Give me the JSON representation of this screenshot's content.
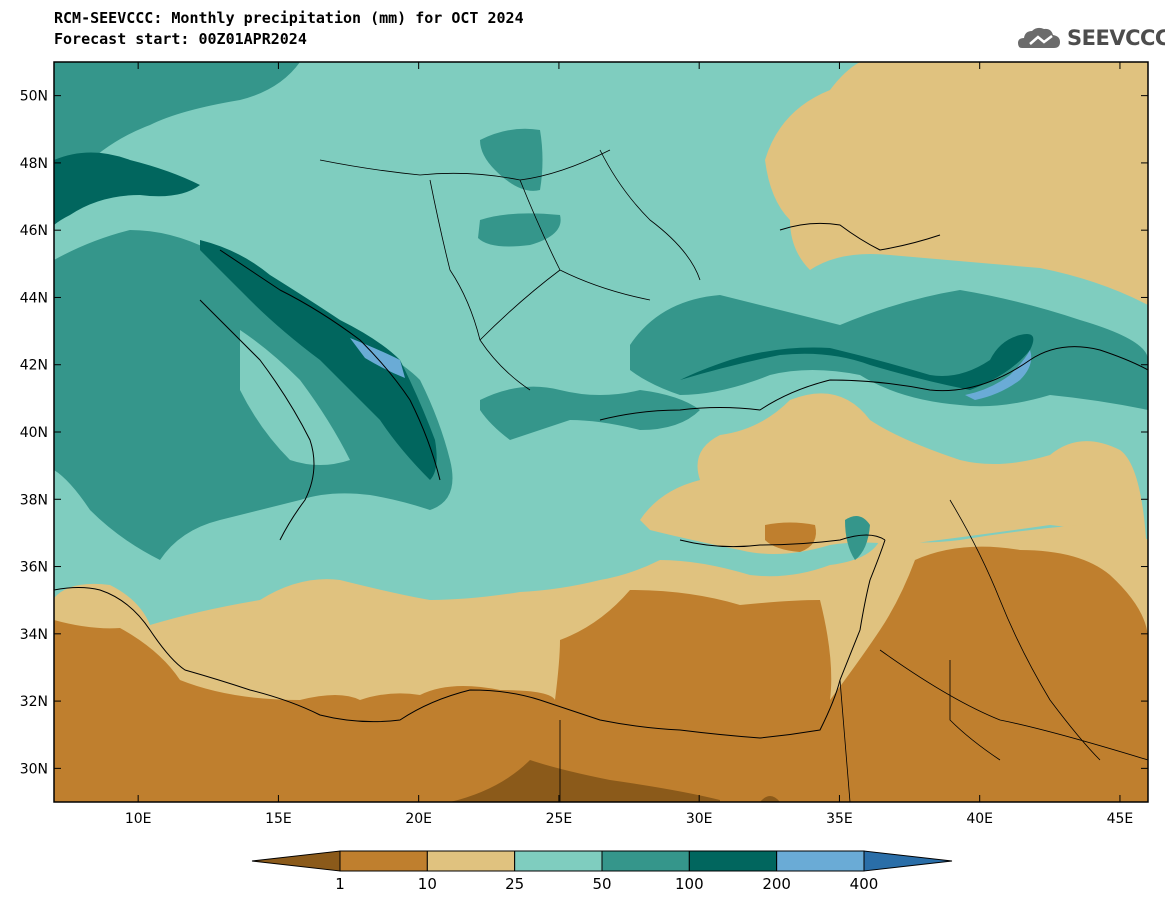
{
  "header": {
    "title_line1": "RCM-SEEVCCC: Monthly precipitation (mm) for OCT 2024",
    "title_line2": "Forecast start: 00Z01APR2024"
  },
  "logo": {
    "text": "SEEVCCC",
    "icon": "cloud-icon"
  },
  "map": {
    "lon_range": [
      7.0,
      46.0
    ],
    "lat_range": [
      29.0,
      51.0
    ],
    "lat_ticks": [
      {
        "value": 50,
        "label": "50N"
      },
      {
        "value": 48,
        "label": "48N"
      },
      {
        "value": 46,
        "label": "46N"
      },
      {
        "value": 44,
        "label": "44N"
      },
      {
        "value": 42,
        "label": "42N"
      },
      {
        "value": 40,
        "label": "40N"
      },
      {
        "value": 38,
        "label": "38N"
      },
      {
        "value": 36,
        "label": "36N"
      },
      {
        "value": 34,
        "label": "34N"
      },
      {
        "value": 32,
        "label": "32N"
      },
      {
        "value": 30,
        "label": "30N"
      }
    ],
    "lon_ticks": [
      {
        "value": 10,
        "label": "10E"
      },
      {
        "value": 15,
        "label": "15E"
      },
      {
        "value": 20,
        "label": "20E"
      },
      {
        "value": 25,
        "label": "25E"
      },
      {
        "value": 30,
        "label": "30E"
      },
      {
        "value": 35,
        "label": "35E"
      },
      {
        "value": 40,
        "label": "40E"
      },
      {
        "value": 45,
        "label": "45E"
      }
    ]
  },
  "colorbar": {
    "colors": [
      "#8b5a1a",
      "#bf7f2e",
      "#e0c27f",
      "#7fcdbf",
      "#35968b",
      "#01665e",
      "#6aabd6",
      "#2a6ea8"
    ],
    "labels": [
      "1",
      "10",
      "25",
      "50",
      "100",
      "200",
      "400"
    ]
  },
  "colors": {
    "land_dry": "#bf7f2e",
    "land_very_dry": "#8b5a1a",
    "semi_arid": "#e0c27f",
    "moderate": "#7fcdbf",
    "wet": "#35968b",
    "very_wet": "#01665e",
    "extreme": "#6aabd6"
  }
}
